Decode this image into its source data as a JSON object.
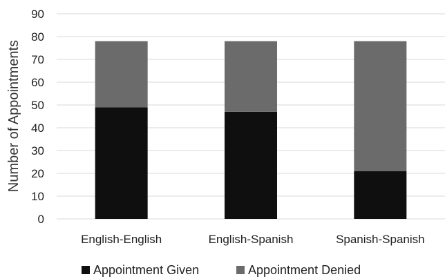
{
  "chart_data": {
    "type": "bar",
    "stacked": true,
    "title": "",
    "xlabel": "",
    "ylabel": "Number of Appointments",
    "ylim": [
      0,
      90
    ],
    "ytick_step": 10,
    "grid": true,
    "legend_position": "bottom",
    "categories": [
      "English-English",
      "English-Spanish",
      "Spanish-Spanish"
    ],
    "series": [
      {
        "name": "Appointment Given",
        "values": [
          49,
          47,
          21
        ],
        "color": "#0f0f0f"
      },
      {
        "name": "Appointment Denied",
        "values": [
          29,
          31,
          57
        ],
        "color": "#6b6b6b"
      }
    ]
  }
}
